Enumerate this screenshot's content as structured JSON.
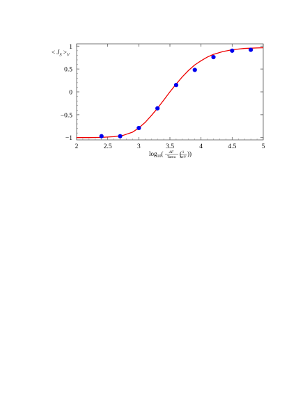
{
  "chart_data": {
    "type": "scatter",
    "title": "",
    "ylabel": "< J_S >_V",
    "xlabel": "log10( ΔF / Tarea ( 1 / keV ))",
    "xlim": [
      2,
      5
    ],
    "ylim": [
      -1.05,
      1.05
    ],
    "x_ticks": [
      "2",
      "2.5",
      "3",
      "3.5",
      "4",
      "4.5",
      "5"
    ],
    "y_ticks": [
      "-1",
      "-0.5",
      "0",
      "0.5",
      "1"
    ],
    "grid": false,
    "legend": "none",
    "series": [
      {
        "kind": "points",
        "color": "#0000ee",
        "x": [
          2.4,
          2.7,
          3.0,
          3.3,
          3.6,
          3.9,
          4.2,
          4.5,
          4.8
        ],
        "y": [
          -0.97,
          -0.97,
          -0.79,
          -0.36,
          0.15,
          0.48,
          0.76,
          0.9,
          0.92
        ]
      },
      {
        "kind": "curve",
        "color": "#ee0000",
        "x": [
          2.0,
          2.2,
          2.4,
          2.6,
          2.75,
          2.9,
          3.0,
          3.1,
          3.2,
          3.3,
          3.4,
          3.5,
          3.6,
          3.7,
          3.8,
          3.9,
          4.0,
          4.1,
          4.2,
          4.35,
          4.5,
          4.7,
          4.9,
          5.0
        ],
        "y": [
          -1.0,
          -1.0,
          -0.995,
          -0.98,
          -0.95,
          -0.88,
          -0.79,
          -0.67,
          -0.52,
          -0.36,
          -0.18,
          0.0,
          0.17,
          0.33,
          0.47,
          0.59,
          0.68,
          0.76,
          0.82,
          0.88,
          0.92,
          0.95,
          0.96,
          0.965
        ]
      }
    ]
  }
}
